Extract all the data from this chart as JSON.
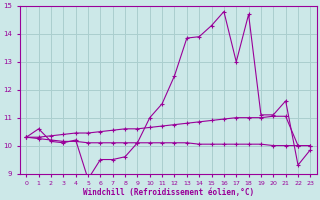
{
  "x": [
    0,
    1,
    2,
    3,
    4,
    5,
    6,
    7,
    8,
    9,
    10,
    11,
    12,
    13,
    14,
    15,
    16,
    17,
    18,
    19,
    20,
    21,
    22,
    23
  ],
  "line1": [
    10.3,
    10.6,
    10.15,
    10.1,
    10.2,
    8.8,
    9.5,
    9.5,
    9.6,
    10.1,
    11.0,
    11.5,
    12.5,
    13.85,
    13.9,
    14.3,
    14.8,
    13.0,
    14.7,
    11.1,
    11.1,
    11.6,
    9.3,
    9.85
  ],
  "line2": [
    10.3,
    10.3,
    10.35,
    10.4,
    10.45,
    10.45,
    10.5,
    10.55,
    10.6,
    10.6,
    10.65,
    10.7,
    10.75,
    10.8,
    10.85,
    10.9,
    10.95,
    11.0,
    11.0,
    11.0,
    11.05,
    11.05,
    10.0,
    10.0
  ],
  "line3": [
    10.3,
    10.25,
    10.2,
    10.15,
    10.15,
    10.1,
    10.1,
    10.1,
    10.1,
    10.1,
    10.1,
    10.1,
    10.1,
    10.1,
    10.05,
    10.05,
    10.05,
    10.05,
    10.05,
    10.05,
    10.0,
    10.0,
    10.0,
    10.0
  ],
  "line_color": "#990099",
  "bg_color": "#cce8e8",
  "grid_color": "#aacece",
  "xlabel": "Windchill (Refroidissement éolien,°C)",
  "ylim": [
    9,
    15
  ],
  "xlim": [
    -0.5,
    23.5
  ],
  "yticks": [
    9,
    10,
    11,
    12,
    13,
    14,
    15
  ],
  "xticks": [
    0,
    1,
    2,
    3,
    4,
    5,
    6,
    7,
    8,
    9,
    10,
    11,
    12,
    13,
    14,
    15,
    16,
    17,
    18,
    19,
    20,
    21,
    22,
    23
  ]
}
